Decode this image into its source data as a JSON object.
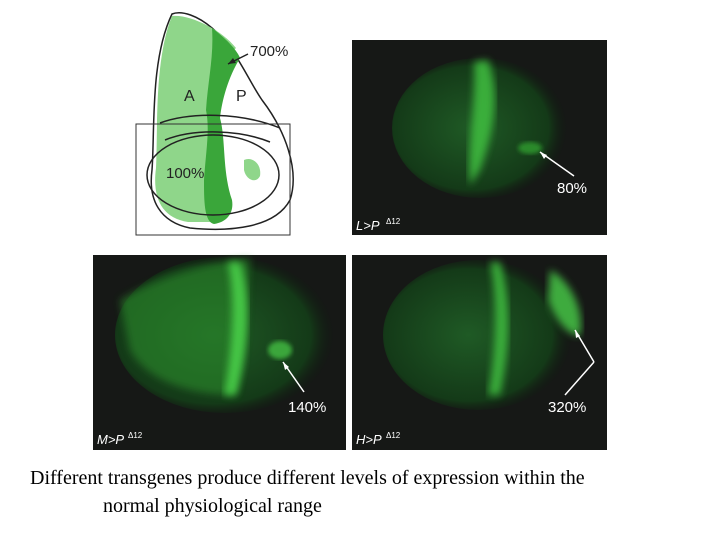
{
  "diagram": {
    "labels": {
      "high": "700%",
      "anterior": "A",
      "posterior": "P",
      "reference": "100%"
    }
  },
  "panels": [
    {
      "name": "L>P",
      "superscript": "Δ12",
      "percent": "80%"
    },
    {
      "name": "M>P",
      "superscript": "Δ12",
      "percent": "140%"
    },
    {
      "name": "H>P",
      "superscript": "Δ12",
      "percent": "320%"
    }
  ],
  "caption": {
    "line1": "Different transgenes produce different levels of expression within the",
    "line2": "normal physiological range"
  }
}
